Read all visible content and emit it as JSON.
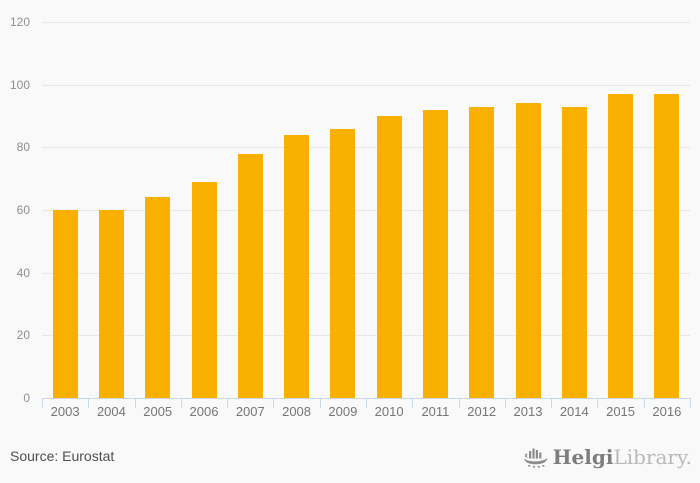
{
  "chart_data": {
    "type": "bar",
    "title": "",
    "xlabel": "",
    "ylabel": "",
    "categories": [
      "2003",
      "2004",
      "2005",
      "2006",
      "2007",
      "2008",
      "2009",
      "2010",
      "2011",
      "2012",
      "2013",
      "2014",
      "2015",
      "2016"
    ],
    "values": [
      60,
      60,
      64,
      69,
      78,
      84,
      86,
      90,
      92,
      93,
      94,
      93,
      97,
      97
    ],
    "ylim": [
      0,
      120
    ],
    "ytick_step": 20,
    "yticks": [
      0,
      20,
      40,
      60,
      80,
      100,
      120
    ],
    "grid": true,
    "legend_position": "none",
    "bar_color": "#fab001"
  },
  "colors": {
    "background": "#f9f9f9",
    "bar": "#fab001",
    "gridline": "#e7e7e7",
    "axis_line": "#ccd6eb",
    "y_label_text": "#8f8f8f",
    "x_label_text": "#767676",
    "source_text": "#4f4f4f",
    "logo_primary": "#7d7d7d",
    "logo_secondary": "#b9b9b9"
  },
  "footer": {
    "source": "Source: Eurostat",
    "logo_primary": "Helgi",
    "logo_secondary": "Library."
  }
}
